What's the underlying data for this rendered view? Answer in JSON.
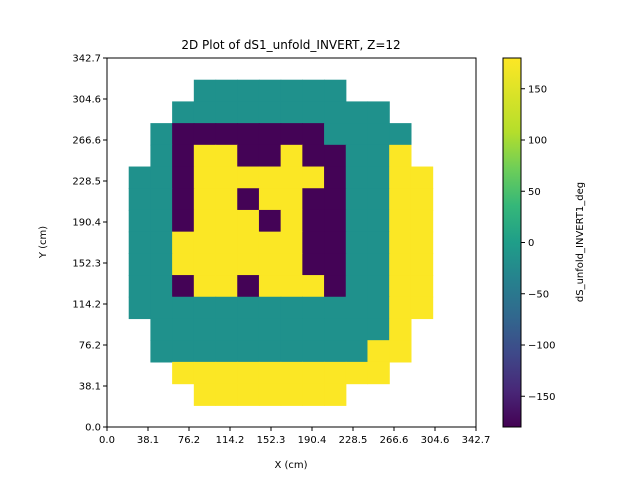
{
  "chart_data": {
    "type": "heatmap",
    "title": "2D Plot of dS1_unfold_INVERT, Z=12",
    "xlabel": "X (cm)",
    "ylabel": "Y (cm)",
    "xlim": [
      0.0,
      342.7
    ],
    "ylim": [
      0.0,
      342.7
    ],
    "xticks": [
      "0.0",
      "38.1",
      "76.2",
      "114.2",
      "152.3",
      "190.4",
      "228.5",
      "266.6",
      "304.6",
      "342.7"
    ],
    "yticks": [
      "0.0",
      "38.1",
      "76.2",
      "114.2",
      "152.3",
      "190.4",
      "228.5",
      "266.6",
      "304.6",
      "342.7"
    ],
    "grid_rows_top_to_bottom": [
      ".................",
      "....GGGGGGG......",
      "...GGGGGGGGGG....",
      "..GPPPPPPPGGGG...",
      "..GPYYPPYPPGGY...",
      ".GGPYYYYYYPGGYY..",
      ".GGPYYPYYPPGGYY..",
      ".GGPYYYPYPPGGYY..",
      ".GGYYYYYYPPGGYY..",
      ".GGYYYYYYPPGGYY..",
      ".GGPYYPYYYPGGYY..",
      ".GGGGGGGGGGGGYY..",
      "..GGGGGGGGGGGY...",
      "..GGGGGGGGGGYY...",
      "...YYYYYYYYYY....",
      "....YYYYYYY......",
      "................."
    ],
    "cell_values": {
      "Y": 178,
      "G": 0,
      "P": -178
    },
    "colorbar": {
      "label": "dS_unfold_INVERT1_deg",
      "min": -180,
      "max": 180,
      "ticks": [
        "150",
        "100",
        "50",
        "0",
        "−50",
        "−100",
        "−150"
      ],
      "tick_values": [
        150,
        100,
        50,
        0,
        -50,
        -100,
        -150
      ],
      "colormap": "viridis"
    },
    "colors": {
      "yellow": "#fde725",
      "teal": "#21918c",
      "purple": "#440154"
    }
  }
}
